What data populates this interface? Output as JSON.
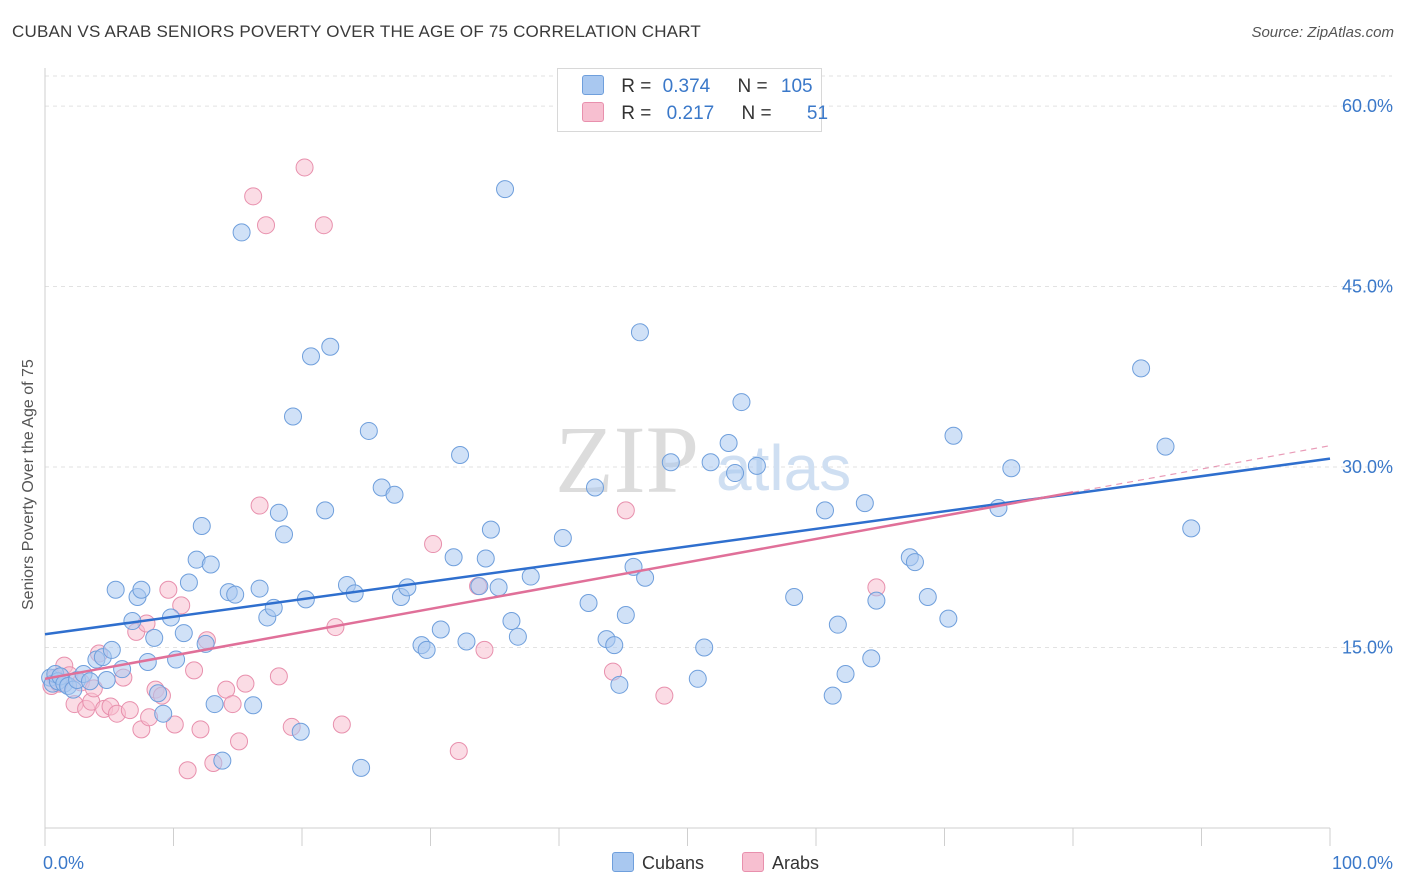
{
  "title": "CUBAN VS ARAB SENIORS POVERTY OVER THE AGE OF 75 CORRELATION CHART",
  "source": "Source: ZipAtlas.com",
  "watermark": {
    "zip": "ZIP",
    "atlas": "atlas"
  },
  "legend": {
    "cubans": {
      "r_label": "R =",
      "r_value": "0.374",
      "n_label": "N =",
      "n_value": "105"
    },
    "arabs": {
      "r_label": "R =",
      "r_value": "0.217",
      "n_label": "N =",
      "n_value": "51"
    }
  },
  "bottom_legend": {
    "cubans": "Cubans",
    "arabs": "Arabs"
  },
  "colors": {
    "cubans_fill": "#a9c8f0",
    "cubans_stroke": "#6f9fdc",
    "cubans_line": "#2f6fce",
    "arabs_fill": "#f7bfd0",
    "arabs_stroke": "#e890ad",
    "arabs_line": "#e07099",
    "axis_label": "#3a78c9",
    "grid": "#e2e2e2"
  },
  "chart_data": {
    "type": "scatter",
    "title": "CUBAN VS ARAB SENIORS POVERTY OVER THE AGE OF 75 CORRELATION CHART",
    "xlabel": "",
    "ylabel": "Seniors Poverty Over the Age of 75",
    "xlim": [
      0,
      100
    ],
    "ylim": [
      0,
      62.5
    ],
    "x_tick_labels": [
      "0.0%",
      "100.0%"
    ],
    "y_ticks": [
      15,
      30,
      45,
      60
    ],
    "y_tick_labels": [
      "15.0%",
      "30.0%",
      "45.0%",
      "60.0%"
    ],
    "grid": true,
    "legend_position": "top-center",
    "series": [
      {
        "name": "Cubans",
        "points": [
          [
            0.4,
            12.5
          ],
          [
            0.6,
            12.0
          ],
          [
            0.8,
            12.8
          ],
          [
            1.0,
            12.2
          ],
          [
            1.2,
            12.6
          ],
          [
            1.5,
            12.0
          ],
          [
            1.8,
            11.8
          ],
          [
            2.2,
            11.5
          ],
          [
            2.5,
            12.3
          ],
          [
            3.0,
            12.8
          ],
          [
            3.5,
            12.2
          ],
          [
            4.0,
            14.0
          ],
          [
            4.5,
            14.2
          ],
          [
            4.8,
            12.3
          ],
          [
            5.2,
            14.8
          ],
          [
            5.5,
            19.8
          ],
          [
            6.0,
            13.2
          ],
          [
            6.8,
            17.2
          ],
          [
            7.2,
            19.2
          ],
          [
            7.5,
            19.8
          ],
          [
            8.0,
            13.8
          ],
          [
            8.5,
            15.8
          ],
          [
            8.8,
            11.2
          ],
          [
            9.2,
            9.5
          ],
          [
            9.8,
            17.5
          ],
          [
            10.2,
            14.0
          ],
          [
            10.8,
            16.2
          ],
          [
            11.2,
            20.4
          ],
          [
            11.8,
            22.3
          ],
          [
            12.2,
            25.1
          ],
          [
            12.5,
            15.3
          ],
          [
            12.9,
            21.9
          ],
          [
            13.2,
            10.3
          ],
          [
            13.8,
            5.6
          ],
          [
            14.3,
            19.6
          ],
          [
            14.8,
            19.4
          ],
          [
            15.3,
            49.5
          ],
          [
            16.2,
            10.2
          ],
          [
            16.7,
            19.9
          ],
          [
            17.3,
            17.5
          ],
          [
            17.8,
            18.3
          ],
          [
            18.2,
            26.2
          ],
          [
            18.6,
            24.4
          ],
          [
            19.3,
            34.2
          ],
          [
            19.9,
            8.0
          ],
          [
            20.3,
            19.0
          ],
          [
            20.7,
            39.2
          ],
          [
            21.8,
            26.4
          ],
          [
            22.2,
            40.0
          ],
          [
            23.5,
            20.2
          ],
          [
            24.1,
            19.5
          ],
          [
            24.6,
            5.0
          ],
          [
            25.2,
            33.0
          ],
          [
            26.2,
            28.3
          ],
          [
            27.2,
            27.7
          ],
          [
            27.7,
            19.2
          ],
          [
            28.2,
            20.0
          ],
          [
            29.3,
            15.2
          ],
          [
            29.7,
            14.8
          ],
          [
            30.8,
            16.5
          ],
          [
            31.8,
            22.5
          ],
          [
            32.3,
            31.0
          ],
          [
            32.8,
            15.5
          ],
          [
            33.8,
            20.1
          ],
          [
            34.3,
            22.4
          ],
          [
            34.7,
            24.8
          ],
          [
            35.3,
            20.0
          ],
          [
            36.3,
            17.2
          ],
          [
            36.8,
            15.9
          ],
          [
            37.8,
            20.9
          ],
          [
            40.3,
            24.1
          ],
          [
            42.3,
            18.7
          ],
          [
            42.8,
            28.3
          ],
          [
            43.7,
            15.7
          ],
          [
            44.3,
            15.2
          ],
          [
            44.7,
            11.9
          ],
          [
            45.2,
            17.7
          ],
          [
            45.8,
            21.7
          ],
          [
            46.3,
            41.2
          ],
          [
            46.7,
            20.8
          ],
          [
            48.7,
            30.4
          ],
          [
            50.8,
            12.4
          ],
          [
            51.3,
            15.0
          ],
          [
            51.8,
            30.4
          ],
          [
            53.2,
            32.0
          ],
          [
            53.7,
            29.5
          ],
          [
            54.2,
            35.4
          ],
          [
            55.4,
            30.1
          ],
          [
            58.3,
            19.2
          ],
          [
            60.7,
            26.4
          ],
          [
            61.3,
            11.0
          ],
          [
            61.7,
            16.9
          ],
          [
            62.3,
            12.8
          ],
          [
            63.8,
            27.0
          ],
          [
            64.3,
            14.1
          ],
          [
            64.7,
            18.9
          ],
          [
            67.3,
            22.5
          ],
          [
            67.7,
            22.1
          ],
          [
            68.7,
            19.2
          ],
          [
            70.3,
            17.4
          ],
          [
            70.7,
            32.6
          ],
          [
            74.2,
            26.6
          ],
          [
            75.2,
            29.9
          ],
          [
            85.3,
            38.2
          ],
          [
            87.2,
            31.7
          ],
          [
            89.2,
            24.9
          ],
          [
            35.8,
            53.1
          ]
        ]
      },
      {
        "name": "Arabs",
        "points": [
          [
            0.5,
            11.8
          ],
          [
            0.8,
            12.5
          ],
          [
            1.1,
            12.0
          ],
          [
            1.5,
            13.5
          ],
          [
            1.9,
            12.7
          ],
          [
            2.3,
            10.3
          ],
          [
            2.8,
            12.1
          ],
          [
            3.2,
            9.9
          ],
          [
            3.6,
            10.5
          ],
          [
            4.2,
            14.5
          ],
          [
            4.6,
            9.9
          ],
          [
            5.1,
            10.1
          ],
          [
            5.6,
            9.5
          ],
          [
            6.1,
            12.5
          ],
          [
            6.6,
            9.8
          ],
          [
            7.1,
            16.3
          ],
          [
            7.5,
            8.2
          ],
          [
            8.1,
            9.2
          ],
          [
            8.6,
            11.5
          ],
          [
            9.1,
            11.0
          ],
          [
            9.6,
            19.8
          ],
          [
            10.1,
            8.6
          ],
          [
            10.6,
            18.5
          ],
          [
            11.1,
            4.8
          ],
          [
            11.6,
            13.1
          ],
          [
            12.1,
            8.2
          ],
          [
            12.6,
            15.6
          ],
          [
            13.1,
            5.4
          ],
          [
            14.1,
            11.5
          ],
          [
            14.6,
            10.3
          ],
          [
            15.1,
            7.2
          ],
          [
            15.6,
            12.0
          ],
          [
            16.2,
            52.5
          ],
          [
            16.7,
            26.8
          ],
          [
            17.2,
            50.1
          ],
          [
            18.2,
            12.6
          ],
          [
            19.2,
            8.4
          ],
          [
            20.2,
            54.9
          ],
          [
            21.7,
            50.1
          ],
          [
            22.6,
            16.7
          ],
          [
            23.1,
            8.6
          ],
          [
            30.2,
            23.6
          ],
          [
            32.2,
            6.4
          ],
          [
            33.7,
            20.1
          ],
          [
            34.2,
            14.8
          ],
          [
            44.2,
            13.0
          ],
          [
            45.2,
            26.4
          ],
          [
            48.2,
            11.0
          ],
          [
            64.7,
            20.0
          ],
          [
            3.8,
            11.6
          ],
          [
            7.9,
            17.0
          ]
        ]
      }
    ],
    "trend_lines": [
      {
        "name": "Cubans",
        "x": [
          0,
          100
        ],
        "y": [
          16.1,
          30.7
        ],
        "dashed_x": []
      },
      {
        "name": "Arabs",
        "x": [
          0,
          80
        ],
        "y": [
          12.4,
          27.9
        ],
        "dashed_x": [
          80,
          100
        ]
      }
    ]
  }
}
